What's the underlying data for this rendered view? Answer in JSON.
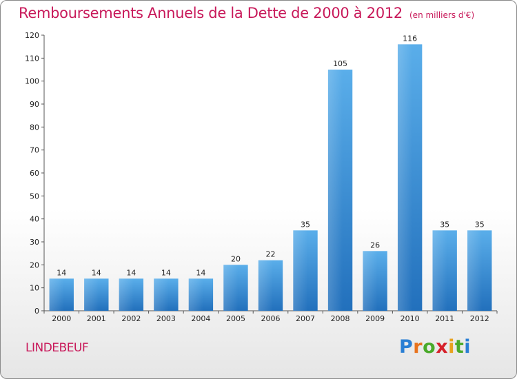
{
  "title": "Remboursements Annuels de la Dette de 2000 à 2012",
  "subtitle": "(en milliers d'€)",
  "commune": "LINDEBEUF",
  "brand": {
    "letters": [
      "P",
      "r",
      "o",
      "x",
      "i",
      "t",
      "i"
    ],
    "colors": [
      "#2a7fd4",
      "#e8731e",
      "#4aaa2a",
      "#d6202a",
      "#e8a21e",
      "#4aaa2a",
      "#2a7fd4"
    ]
  },
  "chart_data": {
    "type": "bar",
    "categories": [
      "2000",
      "2001",
      "2002",
      "2003",
      "2004",
      "2005",
      "2006",
      "2007",
      "2008",
      "2009",
      "2010",
      "2011",
      "2012"
    ],
    "values": [
      14,
      14,
      14,
      14,
      14,
      20,
      22,
      35,
      105,
      26,
      116,
      35,
      35
    ],
    "yticks": [
      "0",
      "10",
      "20",
      "30",
      "40",
      "50",
      "60",
      "70",
      "80",
      "90",
      "100",
      "110",
      "120"
    ],
    "ylim": [
      0,
      120
    ],
    "bar_color": "#3a8fd8",
    "grid": false
  }
}
